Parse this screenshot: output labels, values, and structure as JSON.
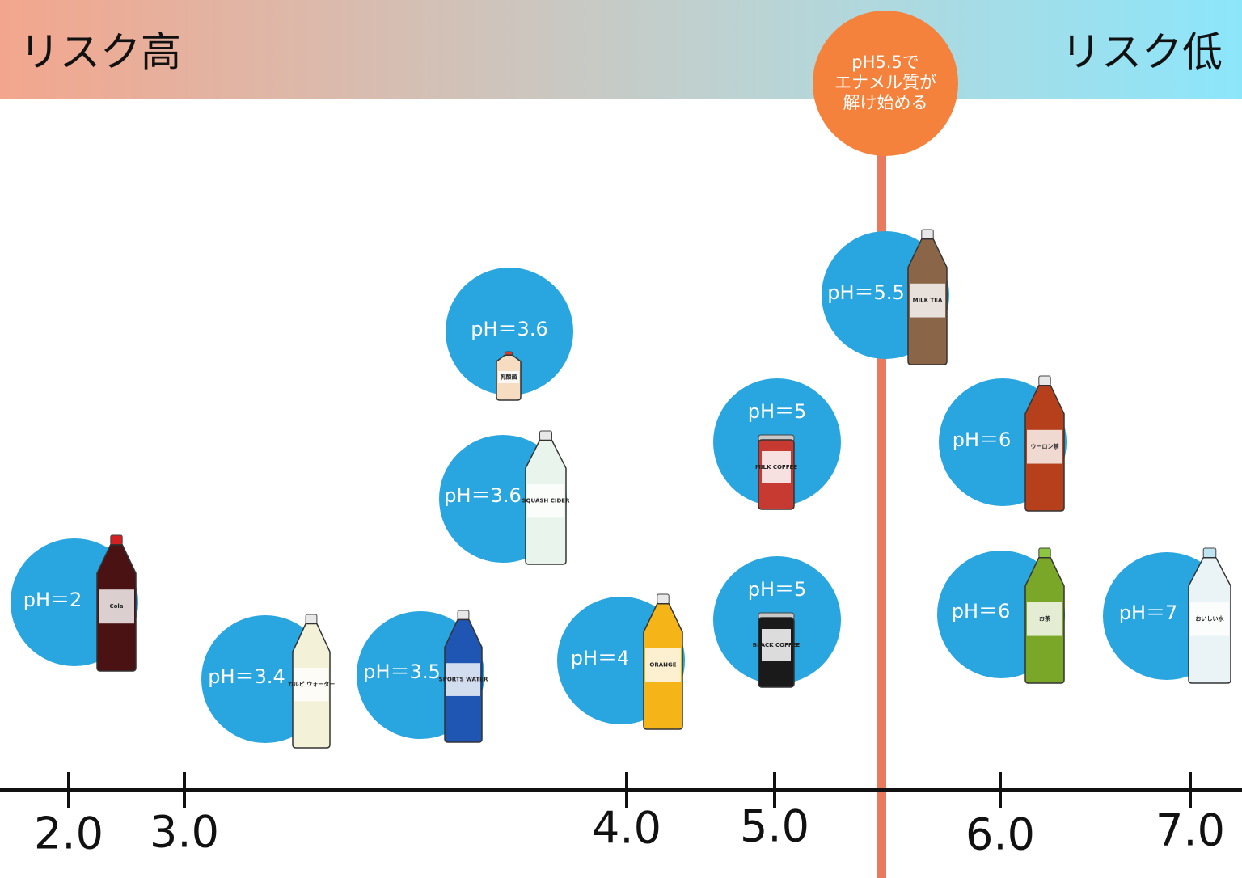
{
  "header": {
    "left": "リスク高",
    "right": "リスク低"
  },
  "threshold": {
    "lines": [
      "pH5.5で",
      "エナメル質が",
      "解け始める"
    ]
  },
  "axis": {
    "ticks": [
      "2.0",
      "3.0",
      "4.0",
      "5.0",
      "6.0",
      "7.0"
    ]
  },
  "drinks": [
    {
      "label": "pH＝2",
      "brand": "Cola"
    },
    {
      "label": "pH＝3.4",
      "brand": "カルピ ウォーター"
    },
    {
      "label": "pH＝3.5",
      "brand": "SPORTS WATER"
    },
    {
      "label": "pH＝3.6",
      "brand": "乳酸菌"
    },
    {
      "label": "pH＝3.6",
      "brand": "SQUASH CIDER"
    },
    {
      "label": "pH＝4",
      "brand": "ORANGE"
    },
    {
      "label": "pH＝5",
      "brand": "MILK COFFEE"
    },
    {
      "label": "pH＝5",
      "brand": "BLACK COFFEE"
    },
    {
      "label": "pH＝5.5",
      "brand": "MILK TEA"
    },
    {
      "label": "pH＝6",
      "brand": "ウーロン茶"
    },
    {
      "label": "pH＝6",
      "brand": "お茶"
    },
    {
      "label": "pH＝7",
      "brand": "おいしい水"
    }
  ]
}
